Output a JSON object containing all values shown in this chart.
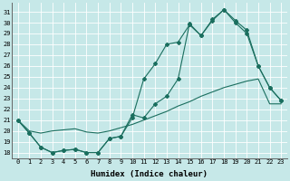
{
  "xlabel": "Humidex (Indice chaleur)",
  "background_color": "#c6e8e8",
  "line_color": "#1a6e5e",
  "xlim": [
    -0.5,
    23.5
  ],
  "ylim": [
    17.5,
    31.8
  ],
  "yticks": [
    18,
    19,
    20,
    21,
    22,
    23,
    24,
    25,
    26,
    27,
    28,
    29,
    30,
    31
  ],
  "xticks": [
    0,
    1,
    2,
    3,
    4,
    5,
    6,
    7,
    8,
    9,
    10,
    11,
    12,
    13,
    14,
    15,
    16,
    17,
    18,
    19,
    20,
    21,
    22,
    23
  ],
  "xtick_labels": [
    "0",
    "1",
    "2",
    "3",
    "4",
    "5",
    "6",
    "7",
    "8",
    "9",
    "10",
    "11",
    "12",
    "13",
    "14",
    "15",
    "16",
    "17",
    "18",
    "19",
    "20",
    "21",
    "22",
    "23"
  ],
  "series1_x": [
    0,
    1,
    2,
    3,
    4,
    5,
    6,
    7,
    8,
    9,
    10,
    11,
    12,
    13,
    14,
    15,
    16,
    17,
    18,
    19,
    20,
    21,
    22,
    23
  ],
  "series1_y": [
    21.0,
    19.8,
    18.5,
    18.0,
    18.2,
    18.3,
    18.0,
    18.0,
    19.3,
    19.5,
    21.2,
    24.8,
    26.2,
    28.0,
    28.2,
    29.8,
    28.8,
    30.2,
    31.2,
    30.0,
    29.0,
    26.0,
    24.0,
    22.8
  ],
  "series2_x": [
    0,
    1,
    2,
    3,
    4,
    5,
    6,
    7,
    8,
    9,
    10,
    11,
    12,
    13,
    14,
    15,
    16,
    17,
    18,
    19,
    20,
    21,
    22,
    23
  ],
  "series2_y": [
    21.0,
    19.8,
    18.5,
    18.0,
    18.2,
    18.3,
    18.0,
    18.0,
    19.3,
    19.5,
    21.5,
    21.2,
    22.5,
    23.2,
    24.8,
    29.9,
    28.8,
    30.3,
    31.2,
    30.2,
    29.3,
    26.0,
    24.0,
    22.8
  ],
  "series3_x": [
    0,
    1,
    2,
    3,
    4,
    5,
    6,
    7,
    8,
    9,
    10,
    11,
    12,
    13,
    14,
    15,
    16,
    17,
    18,
    19,
    20,
    21,
    22,
    23
  ],
  "series3_y": [
    21.0,
    20.0,
    19.8,
    20.0,
    20.1,
    20.2,
    19.9,
    19.8,
    20.0,
    20.3,
    20.6,
    21.0,
    21.4,
    21.8,
    22.3,
    22.7,
    23.2,
    23.6,
    24.0,
    24.3,
    24.6,
    24.8,
    22.5,
    22.5
  ]
}
